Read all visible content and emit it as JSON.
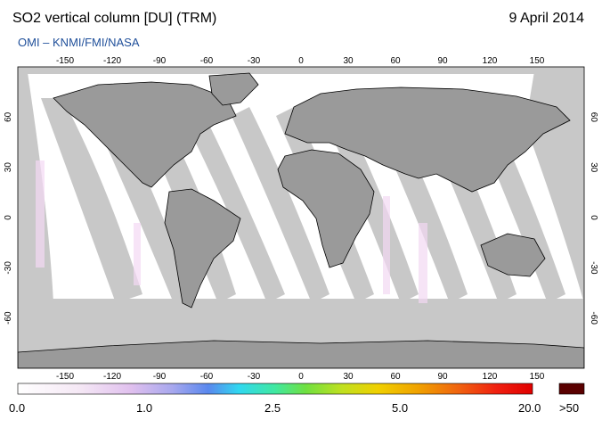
{
  "header": {
    "title": "SO2 vertical column [DU] (TRM)",
    "date": "9 April 2014",
    "source": "OMI  –  KNMI/FMI/NASA"
  },
  "map": {
    "lon_ticks": [
      "-150",
      "-120",
      "-90",
      "-60",
      "-30",
      "0",
      "30",
      "60",
      "90",
      "120",
      "150"
    ],
    "lat_ticks": [
      "60",
      "30",
      "0",
      "-30",
      "-60"
    ],
    "colors": {
      "land": "#9a9a9a",
      "missing": "#c8c8c8",
      "background": "#ffffff"
    }
  },
  "colorbar": {
    "labels": [
      "0.0",
      "1.0",
      "2.5",
      "5.0",
      "20.0"
    ],
    "overflow_label": ">50",
    "overflow_color": "#5a0000"
  }
}
